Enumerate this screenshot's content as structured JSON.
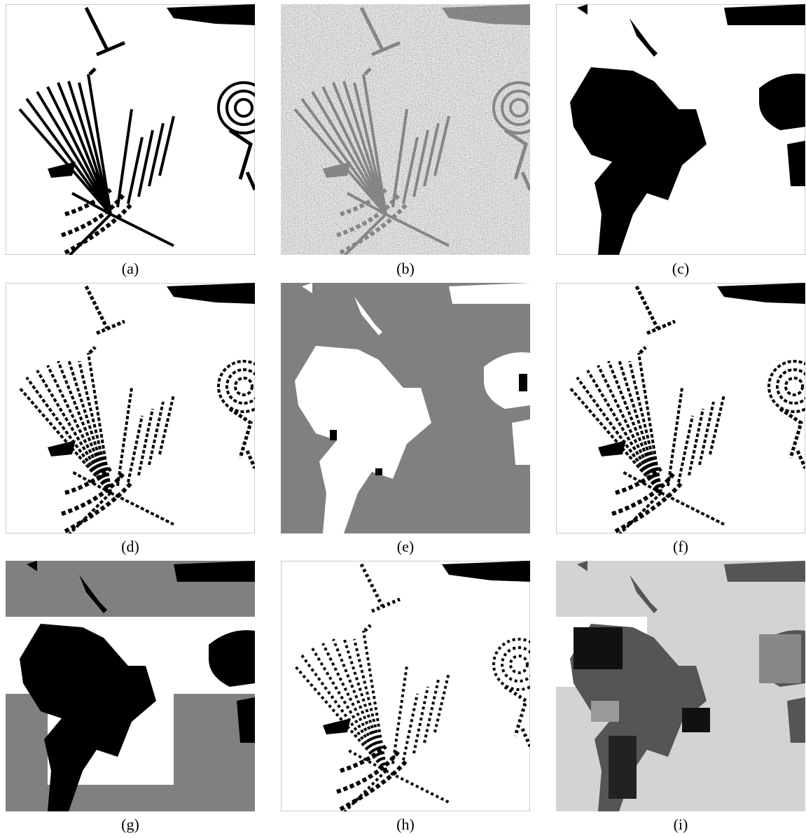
{
  "figure": {
    "captions": [
      "(a)",
      "(b)",
      "(c)",
      "(d)",
      "(e)",
      "(f)",
      "(g)",
      "(h)",
      "(i)"
    ]
  }
}
